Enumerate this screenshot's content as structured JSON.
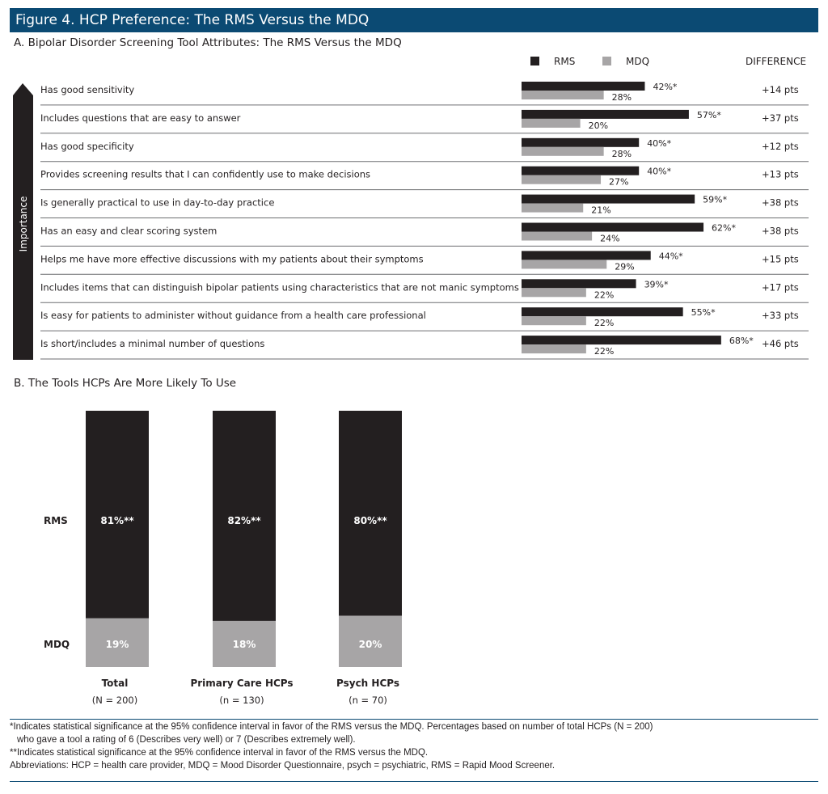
{
  "title": "Figure 4. HCP Preference: The RMS Versus the MDQ",
  "colors": {
    "title_bg": "#0b4a73",
    "rms": "#231f20",
    "mdq": "#a7a5a6",
    "divider": "#6d6e71"
  },
  "chart_data": [
    {
      "type": "bar",
      "orientation": "horizontal",
      "title": "A. Bipolar Disorder Screening Tool Attributes: The RMS Versus the MDQ",
      "axis_label": "Importance",
      "legend": [
        "RMS",
        "MDQ"
      ],
      "legend_placement": "top-right",
      "difference_header": "DIFFERENCE",
      "xlim": [
        0,
        100
      ],
      "categories": [
        "Has good sensitivity",
        "Includes questions that are easy to answer",
        "Has good specificity",
        "Provides screening results that I can confidently use to make decisions",
        "Is generally practical to use in day-to-day practice",
        "Has an easy and clear scoring system",
        "Helps me have more effective discussions with my patients about their symptoms",
        "Includes items that can distinguish bipolar patients using characteristics that are not manic symptoms",
        "Is easy for patients to administer without guidance from a health care professional",
        "Is short/includes a minimal number of questions"
      ],
      "series": [
        {
          "name": "RMS",
          "values": [
            42,
            57,
            40,
            40,
            59,
            62,
            44,
            39,
            55,
            68
          ],
          "labels": [
            "42%*",
            "57%*",
            "40%*",
            "40%*",
            "59%*",
            "62%*",
            "44%*",
            "39%*",
            "55%*",
            "68%*"
          ]
        },
        {
          "name": "MDQ",
          "values": [
            28,
            20,
            28,
            27,
            21,
            24,
            29,
            22,
            22,
            22
          ],
          "labels": [
            "28%",
            "20%",
            "28%",
            "27%",
            "21%",
            "24%",
            "29%",
            "22%",
            "22%",
            "22%"
          ]
        }
      ],
      "difference": [
        "+14 pts",
        "+37 pts",
        "+12 pts",
        "+13 pts",
        "+38 pts",
        "+38 pts",
        "+15 pts",
        "+17 pts",
        "+33 pts",
        "+46 pts"
      ]
    },
    {
      "type": "bar",
      "stacked": true,
      "title": "B. The Tools HCPs Are More Likely To Use",
      "row_labels": [
        "RMS",
        "MDQ"
      ],
      "ylim": [
        0,
        100
      ],
      "categories": [
        "Total",
        "Primary Care HCPs",
        "Psych HCPs"
      ],
      "sample_sizes": [
        "(N = 200)",
        "(n = 130)",
        "(n = 70)"
      ],
      "series": [
        {
          "name": "RMS",
          "values": [
            81,
            82,
            80
          ],
          "labels": [
            "81%**",
            "82%**",
            "80%**"
          ]
        },
        {
          "name": "MDQ",
          "values": [
            19,
            18,
            20
          ],
          "labels": [
            "19%",
            "18%",
            "20%"
          ]
        }
      ]
    }
  ],
  "footnotes": [
    "*Indicates statistical significance at the 95% confidence interval in favor of the RMS versus the MDQ. Percentages based on number of total HCPs (N = 200)",
    "who gave a tool a rating of 6 (Describes very well) or 7 (Describes extremely well).",
    "**Indicates statistical significance at the 95% confidence interval in favor of the RMS versus the MDQ.",
    "Abbreviations: HCP = health care provider, MDQ = Mood Disorder Questionnaire, psych = psychiatric, RMS = Rapid Mood Screener."
  ]
}
